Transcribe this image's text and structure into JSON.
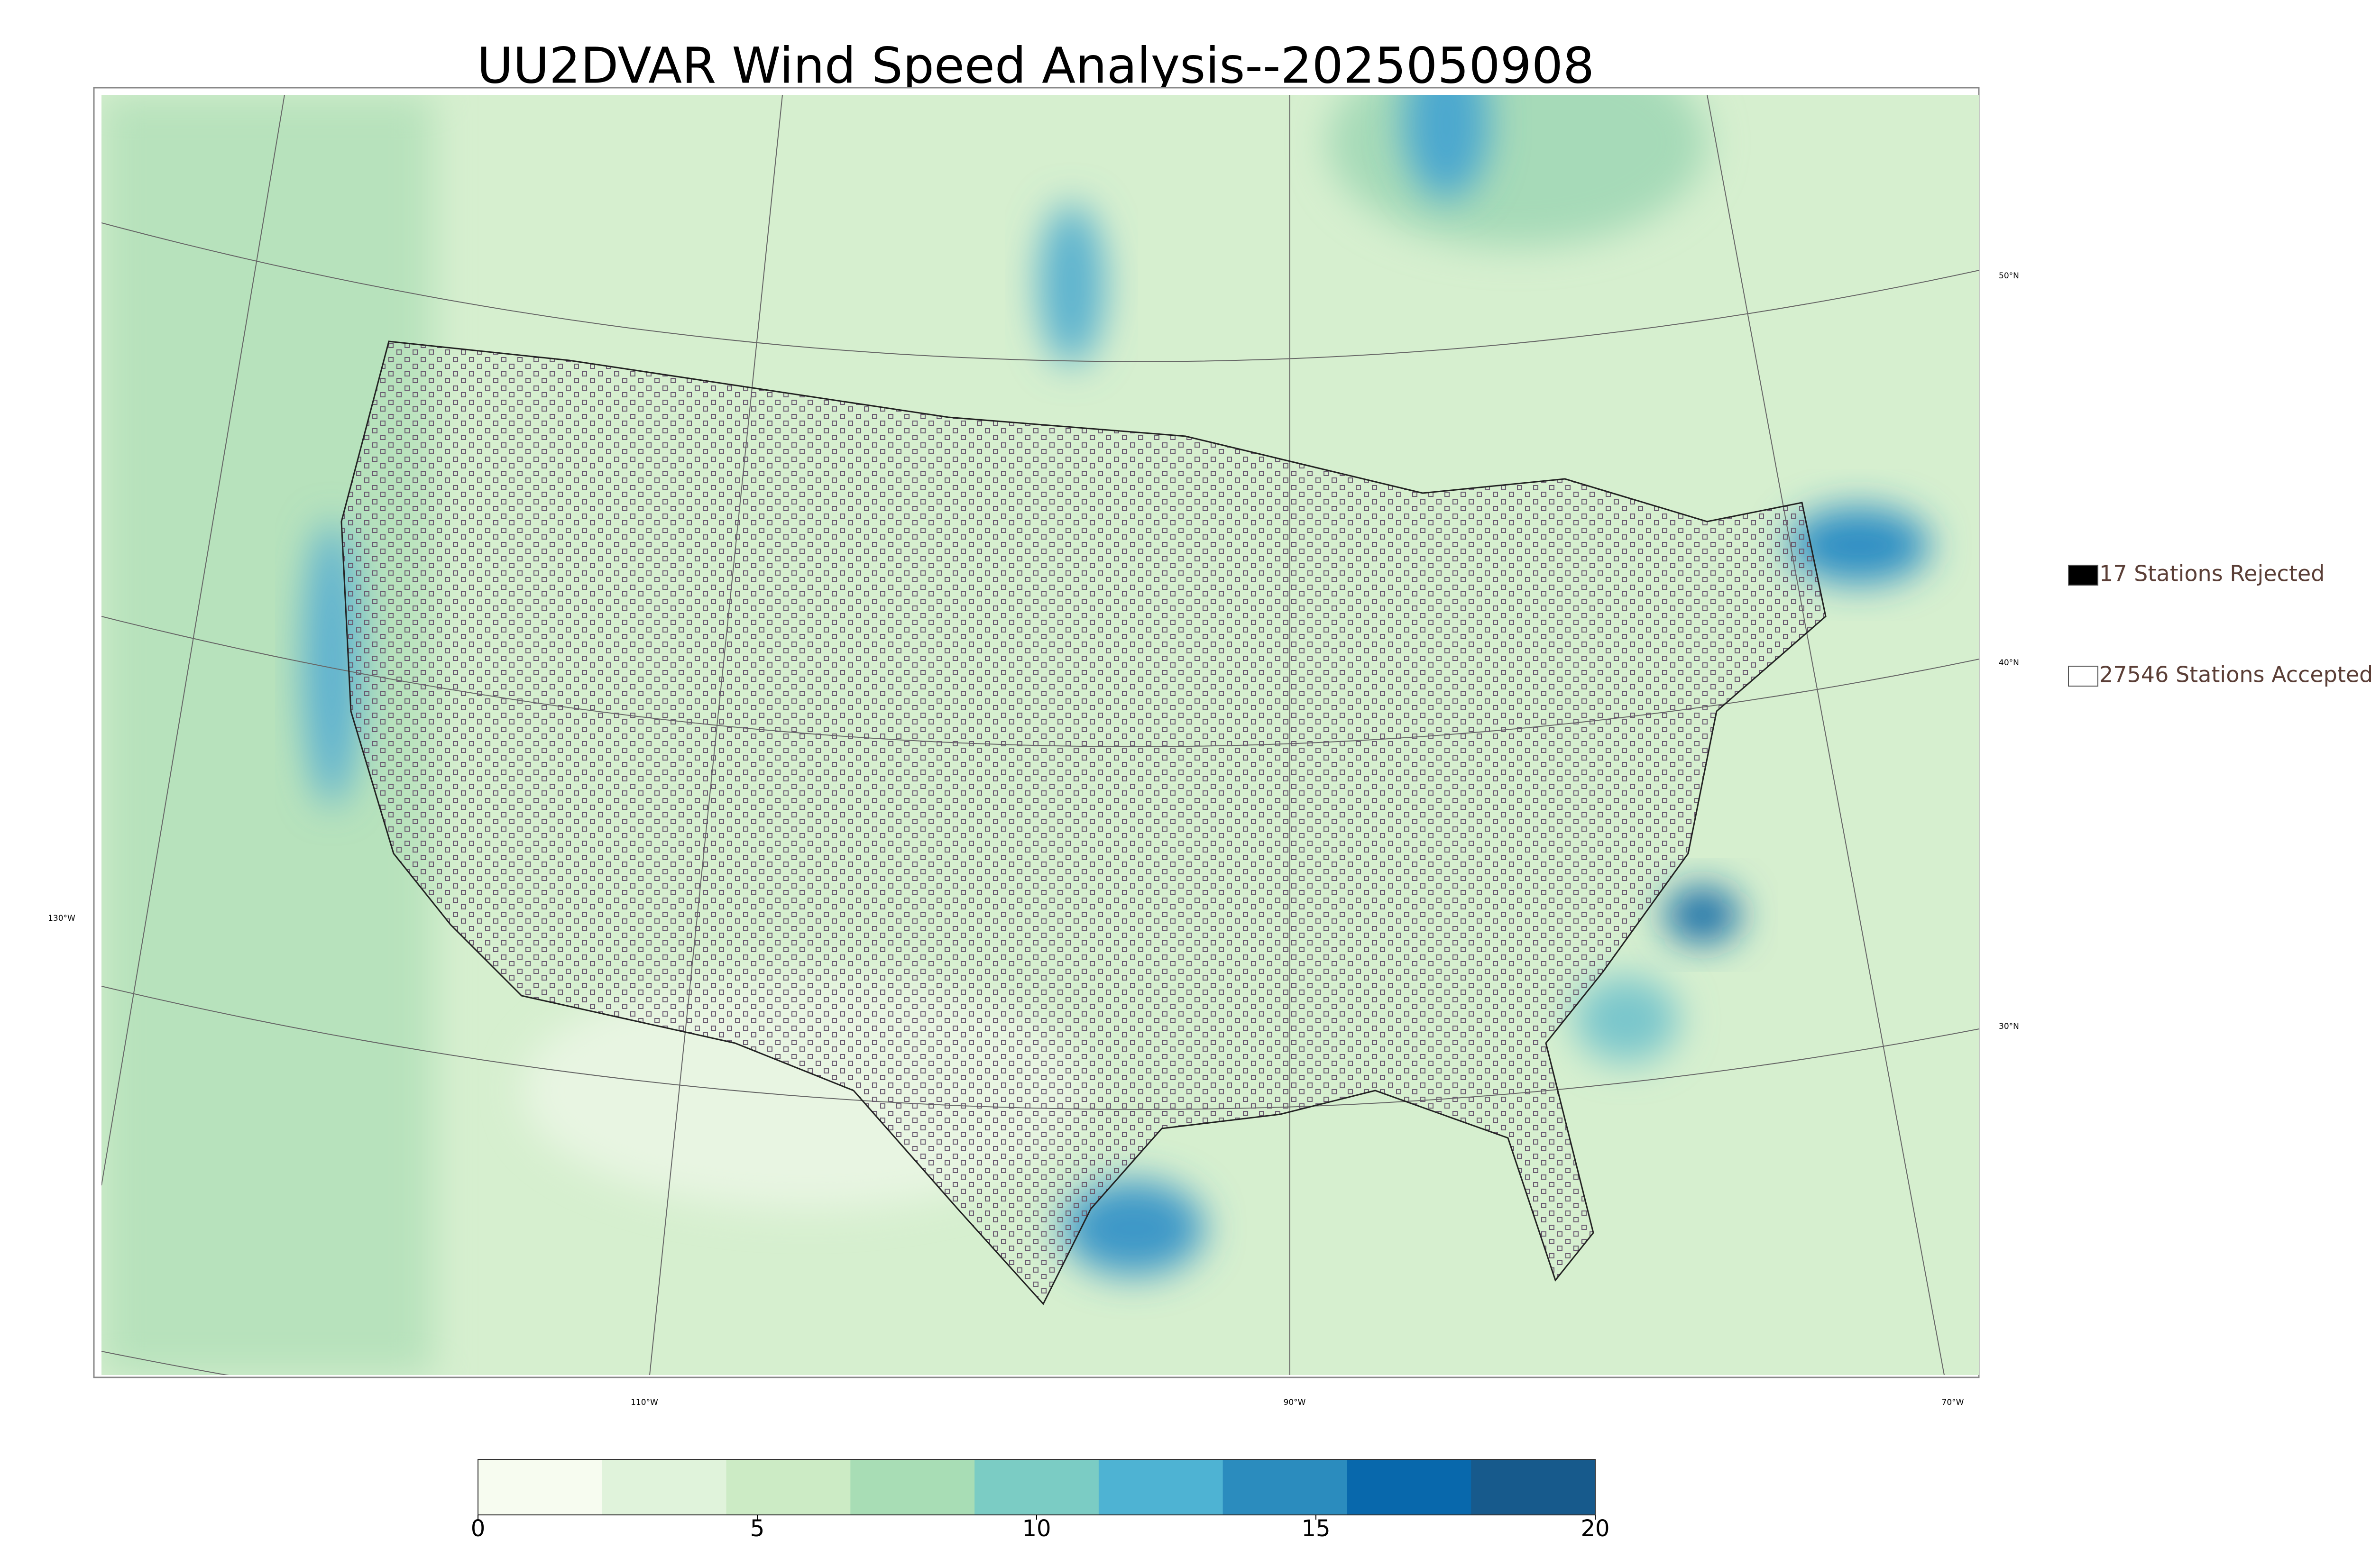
{
  "map": {
    "title": "UU2DVAR Wind Speed Analysis--2025050908",
    "legend": [
      {
        "label": "17 Stations Rejected",
        "fill": "#000000"
      },
      {
        "label": "27546 Stations Accepted",
        "fill": "#ffffff"
      }
    ],
    "lat_labels": [
      "50°N",
      "40°N",
      "30°N"
    ],
    "lon_labels": [
      "130°W",
      "110°W",
      "90°W",
      "70°W"
    ],
    "colorbar": {
      "lim": [
        0,
        20
      ],
      "ticks": [
        0,
        5,
        10,
        15,
        20
      ],
      "colors": [
        "#f7fcf0",
        "#e0f3db",
        "#ccebc5",
        "#a8ddb5",
        "#7bccc4",
        "#4eb3d3",
        "#2b8cbe",
        "#0868ac",
        "#175a8c"
      ]
    }
  }
}
